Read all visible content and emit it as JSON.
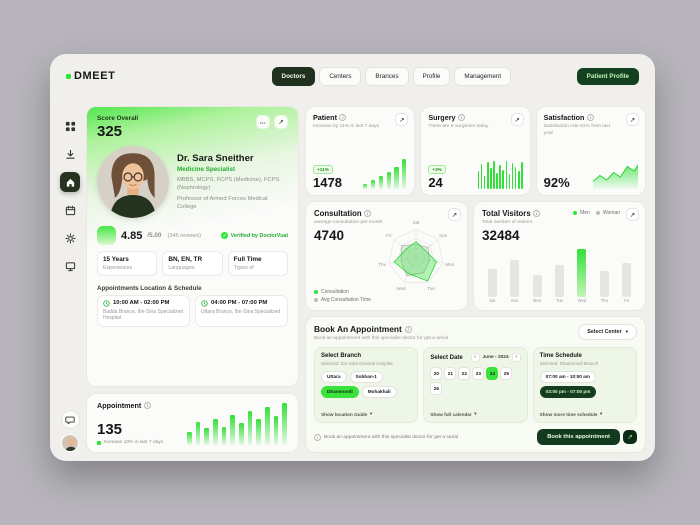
{
  "icons": {
    "dots": "•••",
    "arrow_up_right": "↗",
    "chevron_down": "▾",
    "info": "i",
    "check": "✓",
    "prev": "‹",
    "next": "›"
  },
  "colors": {
    "accent": "#2ee637",
    "dark_green": "#123a1e",
    "active_nav": "#20301f"
  },
  "topbar": {
    "brand": "DMEET",
    "nav": [
      "Doctors",
      "Centers",
      "Brances",
      "Profile",
      "Management"
    ],
    "active_nav": "Doctors",
    "patient_profile": "Patient Profile"
  },
  "sidebar": {
    "icons": [
      "apps",
      "download",
      "home",
      "calendar",
      "settings",
      "monitor",
      "chat",
      "avatar"
    ],
    "active": "home"
  },
  "profile": {
    "score_label": "Score Overall",
    "score_value": "325",
    "name": "Dr. Sara Sneither",
    "specialty": "Medicine Specialist",
    "degrees": "MBBS, MCPS, FCPS (Medicine), FCPS (Nephrology)",
    "affiliation": "Professor of Armed Forces Medical College",
    "rating_value": "4.85",
    "rating_scale": "/5.00",
    "reviews": "(345 reviews)",
    "verified": "Verified by DoctorVual",
    "tags": [
      {
        "value": "15 Years",
        "label": "Experiences"
      },
      {
        "value": "BN, EN, TR",
        "label": "Languages"
      },
      {
        "value": "Full Time",
        "label": "Types of"
      }
    ],
    "schedule_title": "Appointments Location & Schedule",
    "schedules": [
      {
        "time": "10:00 AM - 02:00 PM",
        "place": "Badda Brance, Ibn-Sina Specialized Hospital"
      },
      {
        "time": "04:00 PM - 07:00 PM",
        "place": "Uttara Brance, Ibn-Sina Specialized"
      }
    ]
  },
  "appointment": {
    "title": "Appointment",
    "value": "135",
    "note": "Increase 10% in last 7 days",
    "bars": [
      30,
      52,
      38,
      60,
      42,
      68,
      50,
      78,
      58,
      86,
      66,
      95
    ]
  },
  "stats": {
    "patient": {
      "title": "Patient",
      "subtitle": "Increase by 11% in last 7 days",
      "badge": "+11%",
      "value": "1478",
      "bars": [
        18,
        30,
        42,
        56,
        74,
        100
      ]
    },
    "surgery": {
      "title": "Surgery",
      "subtitle": "There are 8 surgeries today",
      "badge": "+2%",
      "value": "24",
      "bars": [
        60,
        85,
        45,
        90,
        70,
        95,
        55,
        80,
        65,
        92,
        50,
        88,
        75,
        60,
        90
      ]
    },
    "satisfaction": {
      "title": "Satisfaction",
      "subtitle": "Satisfaction rate 91% from last year",
      "value": "92%",
      "area": [
        25,
        45,
        30,
        55,
        40,
        75,
        60,
        95
      ]
    }
  },
  "consultation": {
    "title": "Consultation",
    "subtitle": "average consultation per month",
    "value": "4740",
    "legend": [
      {
        "label": "Consultation"
      },
      {
        "label": "Avg Consultation Time"
      }
    ],
    "axes": [
      "Sat",
      "Sun",
      "Mon",
      "Tue",
      "Wed",
      "Thu",
      "Fri"
    ],
    "consultation_values": [
      55,
      40,
      75,
      95,
      65,
      80,
      45
    ],
    "avg_time_values": [
      45,
      55,
      50,
      62,
      75,
      55,
      65
    ]
  },
  "visitors": {
    "title": "Total Visitors",
    "subtitle": "Total number of visitors",
    "value": "32484",
    "legend": [
      {
        "label": "Men"
      },
      {
        "label": "Woman"
      }
    ],
    "labels": [
      "Sat",
      "Sun",
      "Mon",
      "Tue",
      "Wed",
      "Thu",
      "Fri"
    ],
    "values": [
      52,
      68,
      40,
      58,
      98,
      48,
      62
    ],
    "active_index": 4
  },
  "booking": {
    "title": "Book An Appointment",
    "subtitle": "Book an appointment with this specialist doctor for get a serial",
    "select_center": "Select Center",
    "branch": {
      "label": "Select Branch",
      "selected_note": "Selected: Ibn-Sina General Hospital",
      "chips": [
        "Uttara",
        "Sobhan-1",
        "Dhanmondi",
        "Mohakhali"
      ],
      "active_chip": "Dhanmondi",
      "link": "Show location Guide"
    },
    "date": {
      "label": "Select Date",
      "month": "June - 2024",
      "days": [
        "20",
        "21",
        "22",
        "23",
        "24",
        "25",
        "26"
      ],
      "active_day": "24",
      "link": "Show full calendar"
    },
    "time": {
      "label": "Time Schedule",
      "selected_note": "Selected: Dhanmondi Branch",
      "chips": [
        "07:00 am - 10:00 am",
        "03:00 pm - 07:00 pm"
      ],
      "active_chip": "03:00 pm - 07:00 pm",
      "link": "Show more time schedule"
    },
    "footer_note": "Book an appointment with this specialist doctor for get a serial",
    "book_button": "Book this appointment"
  },
  "chart_data": [
    {
      "type": "bar",
      "title": "Appointment trend",
      "values": [
        30,
        52,
        38,
        60,
        42,
        68,
        50,
        78,
        58,
        86,
        66,
        95
      ]
    },
    {
      "type": "bar",
      "title": "Patient trend",
      "values": [
        18,
        30,
        42,
        56,
        74,
        100
      ]
    },
    {
      "type": "bar",
      "title": "Surgery trend",
      "values": [
        60,
        85,
        45,
        90,
        70,
        95,
        55,
        80,
        65,
        92,
        50,
        88,
        75,
        60,
        90
      ]
    },
    {
      "type": "area",
      "title": "Satisfaction trend",
      "values": [
        25,
        45,
        30,
        55,
        40,
        75,
        60,
        95
      ]
    },
    {
      "type": "radar",
      "title": "Consultation",
      "categories": [
        "Sat",
        "Sun",
        "Mon",
        "Tue",
        "Wed",
        "Thu",
        "Fri"
      ],
      "series": [
        {
          "name": "Consultation",
          "values": [
            55,
            40,
            75,
            95,
            65,
            80,
            45
          ]
        },
        {
          "name": "Avg Consultation Time",
          "values": [
            45,
            55,
            50,
            62,
            75,
            55,
            65
          ]
        }
      ]
    },
    {
      "type": "bar",
      "title": "Total Visitors",
      "categories": [
        "Sat",
        "Sun",
        "Mon",
        "Tue",
        "Wed",
        "Thu",
        "Fri"
      ],
      "values": [
        52,
        68,
        40,
        58,
        98,
        48,
        62
      ]
    }
  ]
}
